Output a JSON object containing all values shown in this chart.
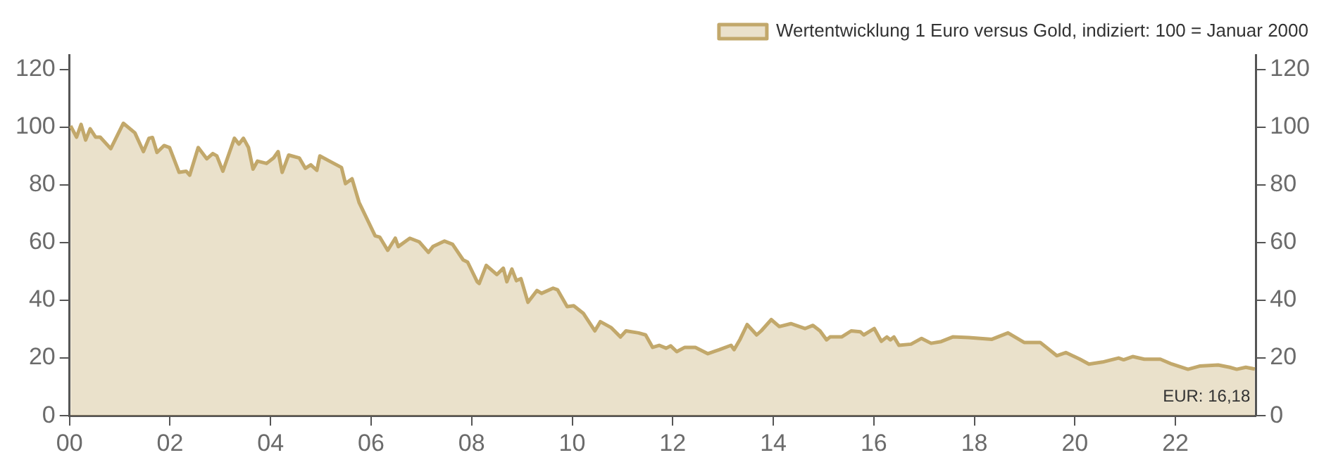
{
  "chart_data": {
    "type": "area",
    "x": [
      2000.02,
      2000.14,
      2000.23,
      2000.32,
      2000.41,
      2000.52,
      2000.61,
      2000.82,
      2001.07,
      2001.3,
      2001.47,
      2001.58,
      2001.65,
      2001.74,
      2001.88,
      2001.99,
      2002.18,
      2002.32,
      2002.39,
      2002.56,
      2002.73,
      2002.85,
      2002.93,
      2003.05,
      2003.28,
      2003.37,
      2003.46,
      2003.56,
      2003.65,
      2003.74,
      2003.92,
      2004.06,
      2004.15,
      2004.23,
      2004.36,
      2004.57,
      2004.69,
      2004.8,
      2004.92,
      2004.98,
      2005.16,
      2005.41,
      2005.49,
      2005.62,
      2005.76,
      2006.08,
      2006.17,
      2006.33,
      2006.48,
      2006.54,
      2006.77,
      2006.96,
      2007.14,
      2007.23,
      2007.46,
      2007.62,
      2007.83,
      2007.92,
      2008.11,
      2008.15,
      2008.29,
      2008.5,
      2008.63,
      2008.7,
      2008.8,
      2008.89,
      2008.98,
      2009.12,
      2009.3,
      2009.39,
      2009.62,
      2009.71,
      2009.9,
      2010.03,
      2010.22,
      2010.45,
      2010.56,
      2010.77,
      2010.96,
      2011.07,
      2011.32,
      2011.46,
      2011.6,
      2011.73,
      2011.87,
      2011.96,
      2012.08,
      2012.24,
      2012.45,
      2012.7,
      2012.93,
      2013.16,
      2013.22,
      2013.34,
      2013.48,
      2013.67,
      2013.76,
      2013.96,
      2014.12,
      2014.35,
      2014.63,
      2014.79,
      2014.93,
      2015.06,
      2015.13,
      2015.36,
      2015.55,
      2015.73,
      2015.8,
      2016.01,
      2016.15,
      2016.26,
      2016.33,
      2016.4,
      2016.5,
      2016.74,
      2016.95,
      2017.14,
      2017.34,
      2017.57,
      2017.89,
      2018.35,
      2018.67,
      2018.99,
      2019.31,
      2019.64,
      2019.82,
      2020.1,
      2020.28,
      2020.55,
      2020.87,
      2020.97,
      2021.15,
      2021.38,
      2021.7,
      2021.93,
      2022.25,
      2022.48,
      2022.85,
      2023.08,
      2023.22,
      2023.4,
      2023.58
    ],
    "series": [
      {
        "name": "Wertentwicklung 1 Euro versus Gold, indiziert: 100 = Januar 2000",
        "color": "#c2a86b",
        "values": [
          100.4,
          96.5,
          100.9,
          95.5,
          99.4,
          96.5,
          96.5,
          92.5,
          101.3,
          98,
          91.5,
          96.1,
          96.4,
          91.2,
          93.6,
          92.9,
          84.3,
          84.7,
          83.3,
          92.9,
          89,
          90.8,
          90,
          84.7,
          96.1,
          94.1,
          96.1,
          92.9,
          85.4,
          88.2,
          87.4,
          89.3,
          91.5,
          84.3,
          90.3,
          89.3,
          85.7,
          86.9,
          85,
          90,
          88.3,
          86,
          80.4,
          82.1,
          73.9,
          62.3,
          61.9,
          57.3,
          61.5,
          58.6,
          61.5,
          60.2,
          56.6,
          58.6,
          60.5,
          59.4,
          54,
          53.2,
          46.4,
          45.8,
          52.1,
          48.9,
          51.1,
          46.4,
          50.8,
          46.8,
          47.5,
          39.3,
          43.4,
          42.4,
          44.2,
          43.6,
          37.8,
          38.1,
          35.5,
          29.4,
          32.6,
          30.6,
          27.3,
          29.4,
          28.7,
          28,
          23.7,
          24.4,
          23.4,
          24.2,
          22.2,
          23.7,
          23.7,
          21.5,
          22.9,
          24.4,
          22.9,
          26.5,
          31.6,
          28,
          29.4,
          33.3,
          30.9,
          31.9,
          30.2,
          31.3,
          29.4,
          26.3,
          27.3,
          27.3,
          29.4,
          29.1,
          28,
          30.2,
          25.8,
          27.3,
          26.3,
          27.3,
          24.4,
          24.8,
          26.8,
          25.1,
          25.7,
          27.3,
          27.1,
          26.5,
          28.7,
          25.4,
          25.4,
          20.8,
          21.9,
          19.6,
          17.9,
          18.6,
          20,
          19.4,
          20.5,
          19.6,
          19.6,
          17.9,
          16.1,
          17.2,
          17.6,
          16.8,
          16.1,
          16.8,
          16.18
        ]
      }
    ],
    "xlim": [
      2000,
      2023.6
    ],
    "xticks": [
      {
        "value": 2000,
        "label": "00"
      },
      {
        "value": 2002,
        "label": "02"
      },
      {
        "value": 2004,
        "label": "04"
      },
      {
        "value": 2006,
        "label": "06"
      },
      {
        "value": 2008,
        "label": "08"
      },
      {
        "value": 2010,
        "label": "10"
      },
      {
        "value": 2012,
        "label": "12"
      },
      {
        "value": 2014,
        "label": "14"
      },
      {
        "value": 2016,
        "label": "16"
      },
      {
        "value": 2018,
        "label": "18"
      },
      {
        "value": 2020,
        "label": "20"
      },
      {
        "value": 2022,
        "label": "22"
      }
    ],
    "ylim": [
      0,
      125
    ],
    "yticks": [
      0,
      20,
      40,
      60,
      80,
      100,
      120
    ],
    "y2lim": [
      0,
      125
    ],
    "y2ticks": [
      0,
      20,
      40,
      60,
      80,
      100,
      120
    ],
    "grid": false,
    "legend": "top right",
    "annotations": [
      {
        "text": "EUR: 16,18",
        "x": 2023.58,
        "y": 16.18
      }
    ]
  }
}
